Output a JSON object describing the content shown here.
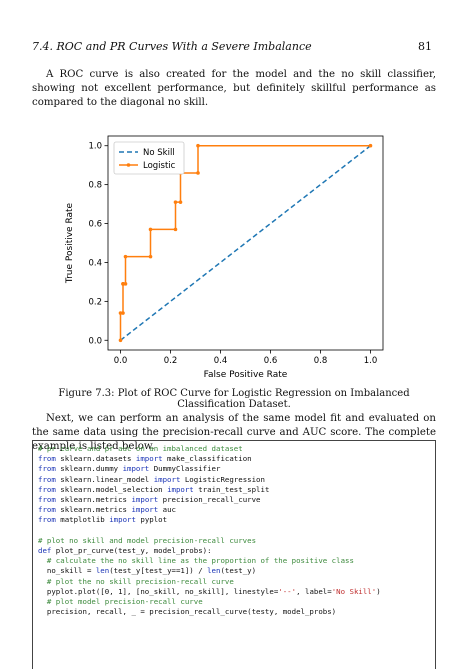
{
  "header": {
    "section_title": "7.4. ROC and PR Curves With a Severe Imbalance",
    "page_number": "81"
  },
  "paragraphs": {
    "p1": "A ROC curve is also created for the model and the no skill classifier, showing not excellent performance, but definitely skillful performance as compared to the diagonal no skill.",
    "p2": "Next, we can perform an analysis of the same model fit and evaluated on the same data using the precision-recall curve and AUC score. The complete example is listed below."
  },
  "figure": {
    "caption": "Figure 7.3: Plot of ROC Curve for Logistic Regression on Imbalanced Classification Dataset."
  },
  "chart_data": {
    "type": "line",
    "title": "",
    "xlabel": "False Positive Rate",
    "ylabel": "True Positive Rate",
    "xlim": [
      0,
      1
    ],
    "ylim": [
      0,
      1
    ],
    "x_ticks": [
      "0.0",
      "0.2",
      "0.4",
      "0.6",
      "0.8",
      "1.0"
    ],
    "y_ticks": [
      "0.0",
      "0.2",
      "0.4",
      "0.6",
      "0.8",
      "1.0"
    ],
    "grid": false,
    "legend_position": "top-left",
    "series": [
      {
        "name": "No Skill",
        "style": "dashed",
        "color": "#1f77b4",
        "x": [
          0,
          1
        ],
        "y": [
          0,
          1
        ]
      },
      {
        "name": "Logistic",
        "style": "solid-markers",
        "color": "#ff7f0e",
        "x": [
          0,
          0,
          0.01,
          0.01,
          0.01,
          0.02,
          0.02,
          0.12,
          0.12,
          0.22,
          0.22,
          0.24,
          0.24,
          0.31,
          0.31,
          1.0
        ],
        "y": [
          0,
          0.14,
          0.14,
          0.29,
          0.29,
          0.29,
          0.43,
          0.43,
          0.57,
          0.57,
          0.71,
          0.71,
          0.86,
          0.86,
          1.0,
          1.0
        ]
      }
    ]
  },
  "code": {
    "lines": [
      [
        {
          "t": "# pr curve and pr auc on an imbalanced dataset",
          "c": "cm"
        }
      ],
      [
        {
          "t": "from",
          "c": "kw"
        },
        {
          "t": " sklearn.datasets "
        },
        {
          "t": "import",
          "c": "kw"
        },
        {
          "t": " make_classification"
        }
      ],
      [
        {
          "t": "from",
          "c": "kw"
        },
        {
          "t": " sklearn.dummy "
        },
        {
          "t": "import",
          "c": "kw"
        },
        {
          "t": " DummyClassifier"
        }
      ],
      [
        {
          "t": "from",
          "c": "kw"
        },
        {
          "t": " sklearn.linear_model "
        },
        {
          "t": "import",
          "c": "kw"
        },
        {
          "t": " LogisticRegression"
        }
      ],
      [
        {
          "t": "from",
          "c": "kw"
        },
        {
          "t": " sklearn.model_selection "
        },
        {
          "t": "import",
          "c": "kw"
        },
        {
          "t": " train_test_split"
        }
      ],
      [
        {
          "t": "from",
          "c": "kw"
        },
        {
          "t": " sklearn.metrics "
        },
        {
          "t": "import",
          "c": "kw"
        },
        {
          "t": " precision_recall_curve"
        }
      ],
      [
        {
          "t": "from",
          "c": "kw"
        },
        {
          "t": " sklearn.metrics "
        },
        {
          "t": "import",
          "c": "kw"
        },
        {
          "t": " auc"
        }
      ],
      [
        {
          "t": "from",
          "c": "kw"
        },
        {
          "t": " matplotlib "
        },
        {
          "t": "import",
          "c": "kw"
        },
        {
          "t": " pyplot"
        }
      ],
      [
        {
          "t": " "
        }
      ],
      [
        {
          "t": "# plot no skill and model precision-recall curves",
          "c": "cm"
        }
      ],
      [
        {
          "t": "def",
          "c": "kw"
        },
        {
          "t": " plot_pr_curve(test_y, model_probs):"
        }
      ],
      [
        {
          "t": "  "
        },
        {
          "t": "# calculate the no skill line as the proportion of the positive class",
          "c": "cm"
        }
      ],
      [
        {
          "t": "  no_skill = "
        },
        {
          "t": "len",
          "c": "kw"
        },
        {
          "t": "(test_y[test_y==1]) / "
        },
        {
          "t": "len",
          "c": "kw"
        },
        {
          "t": "(test_y)"
        }
      ],
      [
        {
          "t": "  "
        },
        {
          "t": "# plot the no skill precision-recall curve",
          "c": "cm"
        }
      ],
      [
        {
          "t": "  pyplot.plot([0, 1], [no_skill, no_skill], linestyle="
        },
        {
          "t": "'--'",
          "c": "st"
        },
        {
          "t": ", label="
        },
        {
          "t": "'No Skill'",
          "c": "st"
        },
        {
          "t": ")"
        }
      ],
      [
        {
          "t": "  "
        },
        {
          "t": "# plot model precision-recall curve",
          "c": "cm"
        }
      ],
      [
        {
          "t": "  precision, recall, _ = precision_recall_curve(testy, model_probs)"
        }
      ]
    ]
  }
}
